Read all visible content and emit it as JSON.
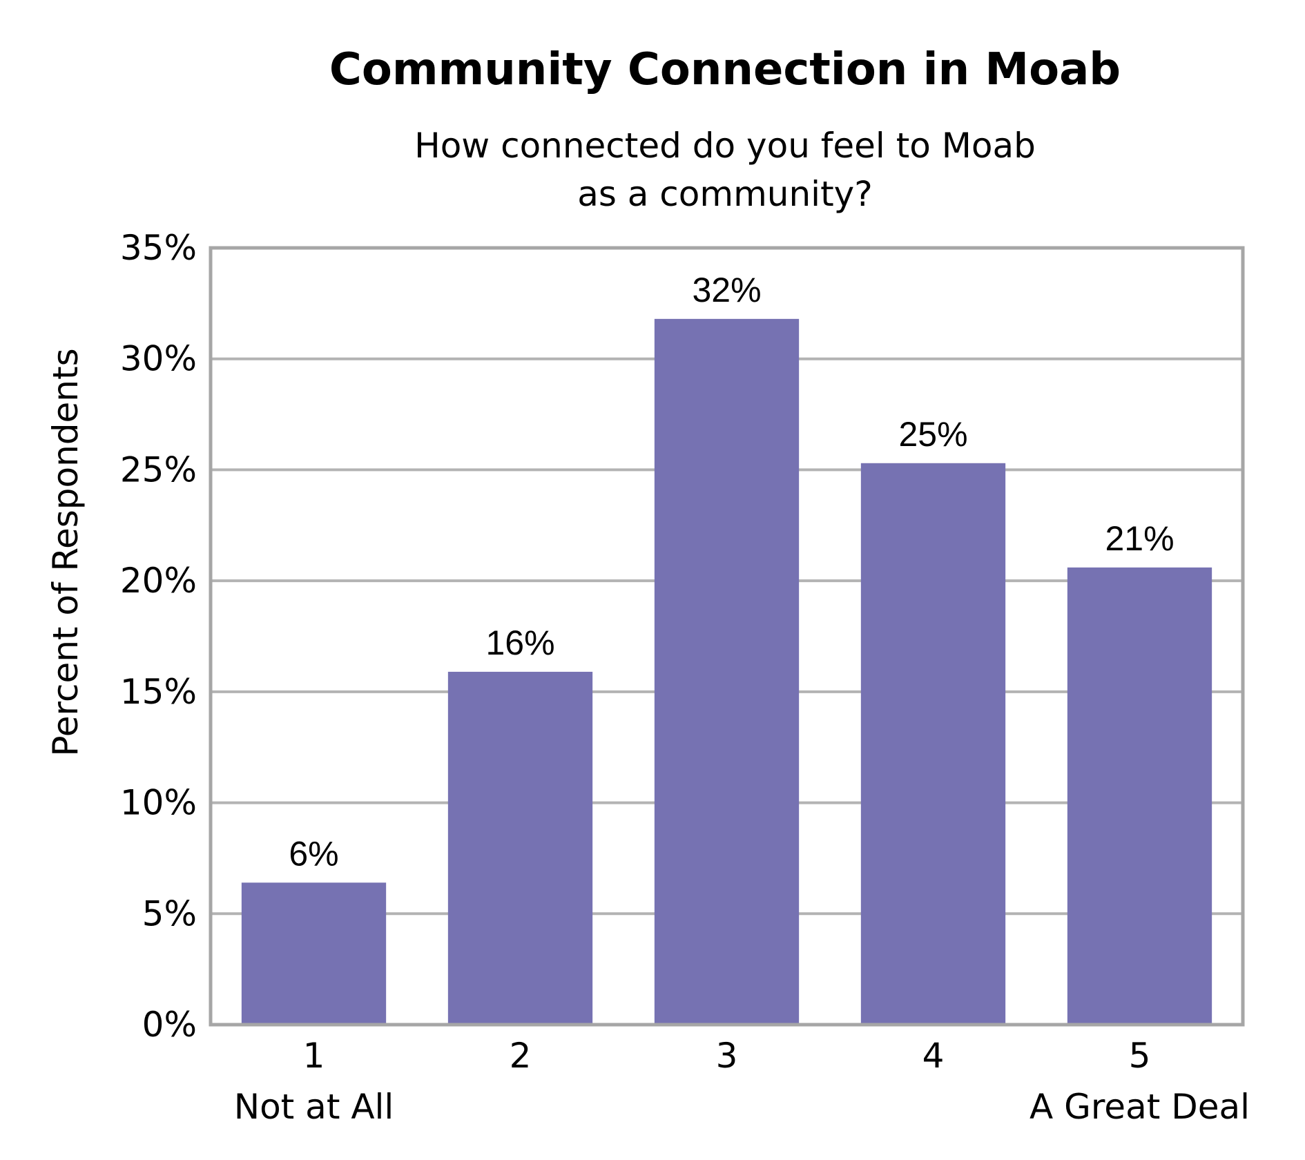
{
  "chart_data": {
    "type": "bar",
    "title": "Community Connection in Moab",
    "subtitle_lines": [
      "How connected do you feel to Moab",
      "as a community?"
    ],
    "ylabel": "Percent of Respondents",
    "xlabel": "",
    "categories": [
      "1",
      "2",
      "3",
      "4",
      "5"
    ],
    "category_sublabels": [
      "Not at All",
      "",
      "",
      "",
      "A Great Deal"
    ],
    "values": [
      6.4,
      15.9,
      31.8,
      25.3,
      20.6
    ],
    "data_labels": [
      "6%",
      "16%",
      "32%",
      "25%",
      "21%"
    ],
    "ylim": [
      0,
      35
    ],
    "yticks": [
      0,
      5,
      10,
      15,
      20,
      25,
      30,
      35
    ],
    "ytick_labels": [
      "0%",
      "5%",
      "10%",
      "15%",
      "20%",
      "25%",
      "30%",
      "35%"
    ],
    "grid": true,
    "bar_color": "#7672b2",
    "grid_color": "#b3b3b3",
    "frame_color": "#a6a6a6"
  }
}
